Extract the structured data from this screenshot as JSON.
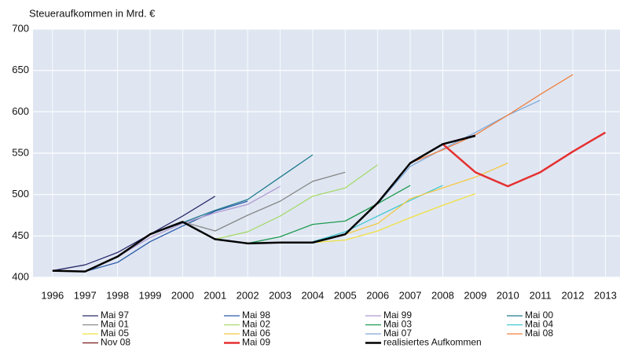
{
  "chart_data": {
    "type": "line",
    "ylabel": "Steueraufkommen in Mrd. €",
    "x": [
      1996,
      1997,
      1998,
      1999,
      2000,
      2001,
      2002,
      2003,
      2004,
      2005,
      2006,
      2007,
      2008,
      2009,
      2010,
      2011,
      2012,
      2013
    ],
    "xlim": [
      1995.4,
      2013.45
    ],
    "ylim": [
      400,
      700
    ],
    "yticks": [
      400,
      450,
      500,
      550,
      600,
      650,
      700
    ],
    "grid": true,
    "series": [
      {
        "name": "Mai 97",
        "color": "#2b2b6b",
        "linewidth": 1.3,
        "values": [
          408,
          415,
          430,
          452,
          474,
          498,
          null,
          null,
          null,
          null,
          null,
          null,
          null,
          null,
          null,
          null,
          null,
          null
        ]
      },
      {
        "name": "Mai 98",
        "color": "#2a5aa8",
        "linewidth": 1.3,
        "values": [
          null,
          407,
          418,
          443,
          462,
          480,
          492,
          null,
          null,
          null,
          null,
          null,
          null,
          null,
          null,
          null,
          null,
          null
        ]
      },
      {
        "name": "Mai 99",
        "color": "#b09ad0",
        "linewidth": 1.3,
        "values": [
          null,
          null,
          425,
          448,
          465,
          478,
          488,
          510,
          null,
          null,
          null,
          null,
          null,
          null,
          null,
          null,
          null,
          null
        ]
      },
      {
        "name": "Mai 00",
        "color": "#1f7a8c",
        "linewidth": 1.3,
        "values": [
          null,
          null,
          null,
          452,
          466,
          481,
          494,
          521,
          548,
          null,
          null,
          null,
          null,
          null,
          null,
          null,
          null,
          null
        ]
      },
      {
        "name": "Mai 01",
        "color": "#888888",
        "linewidth": 1.3,
        "values": [
          null,
          null,
          null,
          null,
          467,
          456,
          475,
          492,
          516,
          527,
          null,
          null,
          null,
          null,
          null,
          null,
          null,
          null
        ]
      },
      {
        "name": "Mai 02",
        "color": "#a6d96a",
        "linewidth": 1.3,
        "values": [
          null,
          null,
          null,
          null,
          null,
          446,
          455,
          474,
          498,
          508,
          536,
          null,
          null,
          null,
          null,
          null,
          null,
          null
        ]
      },
      {
        "name": "Mai 03",
        "color": "#1e9a50",
        "linewidth": 1.3,
        "values": [
          null,
          null,
          null,
          null,
          null,
          null,
          441,
          449,
          464,
          468,
          489,
          511,
          null,
          null,
          null,
          null,
          null,
          null
        ]
      },
      {
        "name": "Mai 04",
        "color": "#40c8d0",
        "linewidth": 1.3,
        "values": [
          null,
          null,
          null,
          null,
          null,
          null,
          null,
          null,
          443,
          455,
          474,
          493,
          511,
          null,
          null,
          null,
          null,
          null
        ]
      },
      {
        "name": "Mai 05",
        "color": "#f0e040",
        "linewidth": 1.3,
        "values": [
          null,
          null,
          null,
          null,
          null,
          null,
          null,
          null,
          442,
          445,
          456,
          472,
          487,
          501,
          null,
          null,
          null,
          null
        ]
      },
      {
        "name": "Mai 06",
        "color": "#f5c842",
        "linewidth": 1.3,
        "values": [
          null,
          null,
          null,
          null,
          null,
          null,
          null,
          null,
          null,
          452,
          465,
          495,
          508,
          521,
          538,
          null,
          null,
          null
        ]
      },
      {
        "name": "Mai 07",
        "color": "#7fa8d8",
        "linewidth": 1.3,
        "values": [
          null,
          null,
          null,
          null,
          null,
          null,
          null,
          null,
          null,
          null,
          489,
          534,
          555,
          575,
          596,
          614,
          null,
          null
        ]
      },
      {
        "name": "Mai 08",
        "color": "#f08040",
        "linewidth": 1.3,
        "values": [
          null,
          null,
          null,
          null,
          null,
          null,
          null,
          null,
          null,
          null,
          null,
          538,
          554,
          572,
          596,
          621,
          645,
          null
        ]
      },
      {
        "name": "Nov 08",
        "color": "#7a1a1a",
        "linewidth": 1.3,
        "values": [
          null,
          null,
          null,
          null,
          null,
          null,
          null,
          null,
          null,
          null,
          null,
          538,
          561,
          572,
          null,
          null,
          null,
          null
        ]
      },
      {
        "name": "Mai 09",
        "color": "#e53030",
        "linewidth": 2.5,
        "values": [
          null,
          null,
          null,
          null,
          null,
          null,
          null,
          null,
          null,
          null,
          null,
          null,
          561,
          527,
          510,
          527,
          552,
          575
        ]
      },
      {
        "name": "realisiertes Aufkommen",
        "color": "#000000",
        "linewidth": 2.5,
        "values": [
          408,
          407,
          425,
          452,
          467,
          446,
          441,
          442,
          442,
          452,
          490,
          538,
          561,
          571,
          null,
          null,
          null,
          null
        ]
      }
    ]
  }
}
